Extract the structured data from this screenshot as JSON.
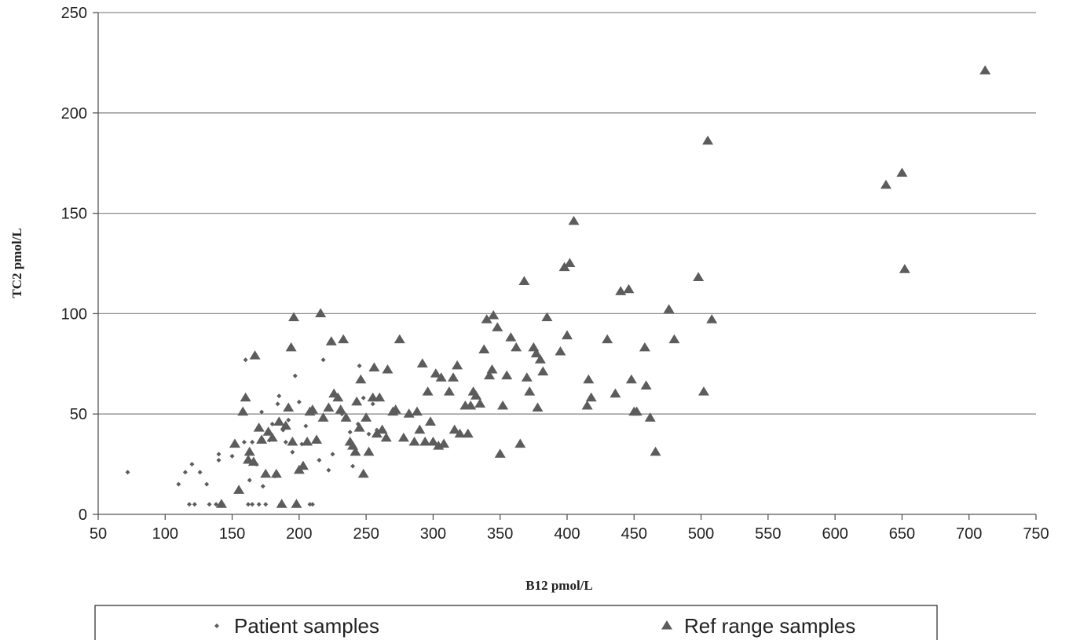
{
  "chart_data": {
    "type": "scatter",
    "title": "",
    "xlabel": "B12 pmol/L",
    "ylabel": "TC2 pmol/L",
    "xlim": [
      50,
      750
    ],
    "ylim": [
      0,
      250
    ],
    "xticks": [
      "50",
      "100",
      "150",
      "200",
      "250",
      "300",
      "350",
      "400",
      "450",
      "500",
      "550",
      "600",
      "650",
      "700",
      "750"
    ],
    "yticks": [
      "0",
      "50",
      "100",
      "150",
      "200",
      "250"
    ],
    "grid": "horizontal",
    "legend_position": "bottom",
    "series": [
      {
        "name": "Patient samples",
        "marker": "diamond",
        "color": "#5c5c5c",
        "points": [
          [
            72,
            21
          ],
          [
            110,
            15
          ],
          [
            115,
            21
          ],
          [
            118,
            5
          ],
          [
            120,
            25
          ],
          [
            122,
            5
          ],
          [
            126,
            21
          ],
          [
            131,
            15
          ],
          [
            133,
            5
          ],
          [
            138,
            5
          ],
          [
            140,
            30
          ],
          [
            140,
            27
          ],
          [
            143,
            5
          ],
          [
            150,
            29
          ],
          [
            152,
            35
          ],
          [
            155,
            12
          ],
          [
            159,
            36
          ],
          [
            160,
            77
          ],
          [
            162,
            5
          ],
          [
            163,
            17
          ],
          [
            165,
            36
          ],
          [
            165,
            5
          ],
          [
            168,
            25
          ],
          [
            170,
            5
          ],
          [
            172,
            51
          ],
          [
            173,
            14
          ],
          [
            175,
            5
          ],
          [
            178,
            37
          ],
          [
            180,
            45
          ],
          [
            182,
            19
          ],
          [
            184,
            55
          ],
          [
            185,
            59
          ],
          [
            186,
            5
          ],
          [
            188,
            42
          ],
          [
            190,
            36
          ],
          [
            192,
            47
          ],
          [
            195,
            31
          ],
          [
            197,
            69
          ],
          [
            198,
            5
          ],
          [
            200,
            56
          ],
          [
            202,
            35
          ],
          [
            205,
            44
          ],
          [
            208,
            5
          ],
          [
            210,
            5
          ],
          [
            215,
            27
          ],
          [
            218,
            77
          ],
          [
            222,
            22
          ],
          [
            225,
            30
          ],
          [
            232,
            50
          ],
          [
            238,
            41
          ],
          [
            240,
            24
          ],
          [
            244,
            45
          ],
          [
            245,
            74
          ],
          [
            248,
            58
          ],
          [
            252,
            40
          ],
          [
            255,
            55
          ],
          [
            258,
            42
          ]
        ]
      },
      {
        "name": "Ref range samples",
        "marker": "triangle",
        "color": "#5c5c5c",
        "points": [
          [
            142,
            5
          ],
          [
            152,
            35
          ],
          [
            155,
            12
          ],
          [
            158,
            51
          ],
          [
            160,
            58
          ],
          [
            162,
            27
          ],
          [
            163,
            31
          ],
          [
            166,
            26
          ],
          [
            167,
            79
          ],
          [
            170,
            43
          ],
          [
            172,
            37
          ],
          [
            175,
            20
          ],
          [
            177,
            41
          ],
          [
            180,
            38
          ],
          [
            183,
            20
          ],
          [
            185,
            46
          ],
          [
            187,
            5
          ],
          [
            190,
            44
          ],
          [
            192,
            53
          ],
          [
            194,
            83
          ],
          [
            195,
            36
          ],
          [
            196,
            98
          ],
          [
            198,
            5
          ],
          [
            200,
            22
          ],
          [
            203,
            24
          ],
          [
            206,
            36
          ],
          [
            208,
            51
          ],
          [
            210,
            52
          ],
          [
            213,
            37
          ],
          [
            216,
            100
          ],
          [
            218,
            48
          ],
          [
            222,
            53
          ],
          [
            224,
            86
          ],
          [
            226,
            60
          ],
          [
            229,
            58
          ],
          [
            231,
            52
          ],
          [
            233,
            87
          ],
          [
            235,
            48
          ],
          [
            238,
            36
          ],
          [
            240,
            34
          ],
          [
            242,
            31
          ],
          [
            243,
            56
          ],
          [
            245,
            43
          ],
          [
            246,
            67
          ],
          [
            248,
            20
          ],
          [
            250,
            48
          ],
          [
            252,
            31
          ],
          [
            255,
            58
          ],
          [
            256,
            73
          ],
          [
            258,
            40
          ],
          [
            260,
            58
          ],
          [
            262,
            42
          ],
          [
            265,
            38
          ],
          [
            266,
            72
          ],
          [
            270,
            51
          ],
          [
            272,
            52
          ],
          [
            275,
            87
          ],
          [
            278,
            38
          ],
          [
            282,
            50
          ],
          [
            286,
            36
          ],
          [
            288,
            51
          ],
          [
            290,
            42
          ],
          [
            292,
            75
          ],
          [
            294,
            36
          ],
          [
            296,
            61
          ],
          [
            298,
            46
          ],
          [
            300,
            36
          ],
          [
            302,
            70
          ],
          [
            304,
            34
          ],
          [
            306,
            68
          ],
          [
            308,
            35
          ],
          [
            312,
            61
          ],
          [
            315,
            68
          ],
          [
            316,
            42
          ],
          [
            318,
            74
          ],
          [
            320,
            40
          ],
          [
            324,
            54
          ],
          [
            326,
            40
          ],
          [
            328,
            54
          ],
          [
            330,
            61
          ],
          [
            332,
            59
          ],
          [
            335,
            55
          ],
          [
            338,
            82
          ],
          [
            340,
            97
          ],
          [
            342,
            69
          ],
          [
            344,
            72
          ],
          [
            345,
            99
          ],
          [
            348,
            93
          ],
          [
            350,
            30
          ],
          [
            352,
            54
          ],
          [
            355,
            69
          ],
          [
            358,
            88
          ],
          [
            362,
            83
          ],
          [
            365,
            35
          ],
          [
            368,
            116
          ],
          [
            370,
            68
          ],
          [
            372,
            61
          ],
          [
            375,
            83
          ],
          [
            377,
            80
          ],
          [
            378,
            53
          ],
          [
            380,
            77
          ],
          [
            382,
            71
          ],
          [
            385,
            98
          ],
          [
            395,
            81
          ],
          [
            398,
            123
          ],
          [
            400,
            89
          ],
          [
            402,
            125
          ],
          [
            405,
            146
          ],
          [
            415,
            54
          ],
          [
            416,
            67
          ],
          [
            418,
            58
          ],
          [
            430,
            87
          ],
          [
            436,
            60
          ],
          [
            440,
            111
          ],
          [
            446,
            112
          ],
          [
            448,
            67
          ],
          [
            450,
            51
          ],
          [
            452,
            51
          ],
          [
            458,
            83
          ],
          [
            459,
            64
          ],
          [
            462,
            48
          ],
          [
            466,
            31
          ],
          [
            476,
            102
          ],
          [
            480,
            87
          ],
          [
            498,
            118
          ],
          [
            502,
            61
          ],
          [
            505,
            186
          ],
          [
            508,
            97
          ],
          [
            638,
            164
          ],
          [
            650,
            170
          ],
          [
            652,
            122
          ],
          [
            712,
            221
          ]
        ]
      }
    ]
  }
}
